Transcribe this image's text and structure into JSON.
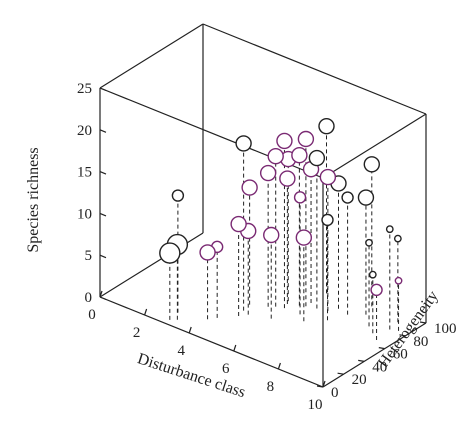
{
  "chart_data": {
    "type": "scatter",
    "projection": "3d",
    "title": "",
    "xlabel": "Disturbance class",
    "ylabel": "Heterogeneity",
    "zlabel": "Species richness",
    "xlim": [
      0,
      10
    ],
    "ylim": [
      0,
      100
    ],
    "zlim": [
      0,
      25
    ],
    "x_ticks": [
      "0",
      "2",
      "4",
      "6",
      "8",
      "10"
    ],
    "y_ticks": [
      "0",
      "20",
      "40",
      "60",
      "80",
      "100"
    ],
    "z_ticks": [
      "0",
      "5",
      "10",
      "15",
      "20",
      "25"
    ],
    "grid": false,
    "marker_style": "open circles on dashed drop lines; marker size varies",
    "colors": {
      "black": "#222222",
      "purple": "#7a2a73"
    },
    "points": [
      {
        "x": 2.9,
        "y": 5,
        "z": 8,
        "size": "large",
        "color": "black"
      },
      {
        "x": 3.1,
        "y": 8,
        "z": 9,
        "size": "large",
        "color": "black"
      },
      {
        "x": 3.9,
        "y": 20,
        "z": 8,
        "size": "medium",
        "color": "purple"
      },
      {
        "x": 4.1,
        "y": 25,
        "z": 8.5,
        "size": "small",
        "color": "purple"
      },
      {
        "x": 4.6,
        "y": 35,
        "z": 11,
        "size": "medium",
        "color": "purple"
      },
      {
        "x": 4.8,
        "y": 40,
        "z": 10,
        "size": "medium",
        "color": "purple"
      },
      {
        "x": 2.8,
        "y": 15,
        "z": 14,
        "size": "small",
        "color": "black"
      },
      {
        "x": 4.5,
        "y": 42,
        "z": 20,
        "size": "medium",
        "color": "black"
      },
      {
        "x": 4.4,
        "y": 50,
        "z": 14,
        "size": "medium",
        "color": "purple"
      },
      {
        "x": 5.0,
        "y": 55,
        "z": 16,
        "size": "medium",
        "color": "purple"
      },
      {
        "x": 5.2,
        "y": 58,
        "z": 18,
        "size": "medium",
        "color": "purple"
      },
      {
        "x": 5.5,
        "y": 60,
        "z": 20,
        "size": "medium",
        "color": "purple"
      },
      {
        "x": 5.4,
        "y": 65,
        "z": 15,
        "size": "medium",
        "color": "purple"
      },
      {
        "x": 5.8,
        "y": 68,
        "z": 18,
        "size": "medium",
        "color": "purple"
      },
      {
        "x": 6.0,
        "y": 70,
        "z": 20,
        "size": "medium",
        "color": "purple"
      },
      {
        "x": 5.6,
        "y": 45,
        "z": 10,
        "size": "medium",
        "color": "purple"
      },
      {
        "x": 6.2,
        "y": 60,
        "z": 14,
        "size": "small",
        "color": "purple"
      },
      {
        "x": 6.0,
        "y": 75,
        "z": 16,
        "size": "medium",
        "color": "purple"
      },
      {
        "x": 6.4,
        "y": 72,
        "z": 18,
        "size": "medium",
        "color": "black"
      },
      {
        "x": 5.3,
        "y": 68,
        "z": 17,
        "size": "medium",
        "color": "purple"
      },
      {
        "x": 6.8,
        "y": 74,
        "z": 16,
        "size": "medium",
        "color": "purple"
      },
      {
        "x": 7.0,
        "y": 80,
        "z": 15,
        "size": "medium",
        "color": "black"
      },
      {
        "x": 6.6,
        "y": 55,
        "z": 10,
        "size": "medium",
        "color": "purple"
      },
      {
        "x": 7.2,
        "y": 65,
        "z": 12,
        "size": "small",
        "color": "black"
      },
      {
        "x": 7.5,
        "y": 78,
        "z": 14,
        "size": "small",
        "color": "black"
      },
      {
        "x": 8.0,
        "y": 85,
        "z": 14,
        "size": "medium",
        "color": "black"
      },
      {
        "x": 7.8,
        "y": 95,
        "z": 17,
        "size": "medium",
        "color": "black"
      },
      {
        "x": 6.0,
        "y": 90,
        "z": 20,
        "size": "medium",
        "color": "black"
      },
      {
        "x": 8.6,
        "y": 75,
        "z": 10,
        "size": "tiny",
        "color": "black"
      },
      {
        "x": 9.3,
        "y": 80,
        "z": 12,
        "size": "tiny",
        "color": "black"
      },
      {
        "x": 9.2,
        "y": 90,
        "z": 10,
        "size": "tiny",
        "color": "black"
      },
      {
        "x": 9.0,
        "y": 70,
        "z": 7,
        "size": "tiny",
        "color": "black"
      },
      {
        "x": 9.6,
        "y": 82,
        "z": 6,
        "size": "tiny",
        "color": "purple"
      },
      {
        "x": 9.4,
        "y": 65,
        "z": 6,
        "size": "small",
        "color": "purple"
      }
    ]
  }
}
